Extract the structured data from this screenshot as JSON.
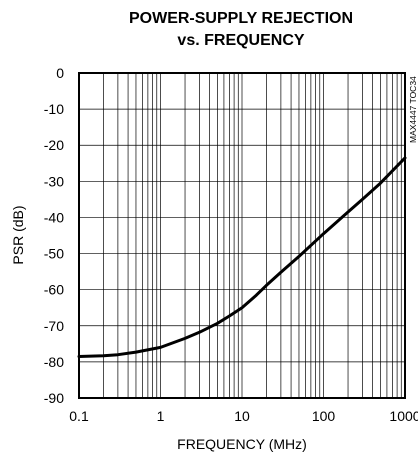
{
  "chart_data": {
    "type": "line",
    "title_line1": "POWER-SUPPLY REJECTION",
    "title_line2": "vs. FREQUENCY",
    "xlabel": "FREQUENCY (MHz)",
    "ylabel": "PSR (dB)",
    "figure_code": "MAX4447 TOC34",
    "x_scale": "log",
    "xlim": [
      0.1,
      1000
    ],
    "ylim": [
      -90,
      0
    ],
    "grid": true,
    "x_ticks": [
      0.1,
      1,
      10,
      100,
      1000
    ],
    "x_tick_labels": [
      "0.1",
      "1",
      "10",
      "100",
      "1000"
    ],
    "y_ticks": [
      0,
      -10,
      -20,
      -30,
      -40,
      -50,
      -60,
      -70,
      -80,
      -90
    ],
    "y_tick_labels": [
      "0",
      "-10",
      "-20",
      "-30",
      "-40",
      "-50",
      "-60",
      "-70",
      "-80",
      "-90"
    ],
    "series": [
      {
        "x": [
          0.1,
          0.2,
          0.3,
          0.5,
          1,
          2,
          3,
          5,
          7,
          10,
          15,
          20,
          30,
          50,
          100,
          200,
          300,
          500,
          1000
        ],
        "y": [
          -78.5,
          -78.3,
          -78.0,
          -77.3,
          -76.0,
          -73.5,
          -71.8,
          -69.3,
          -67.3,
          -65.0,
          -61.5,
          -58.8,
          -55.2,
          -50.8,
          -44.5,
          -38.5,
          -35.0,
          -30.5,
          -23.5
        ]
      }
    ]
  }
}
